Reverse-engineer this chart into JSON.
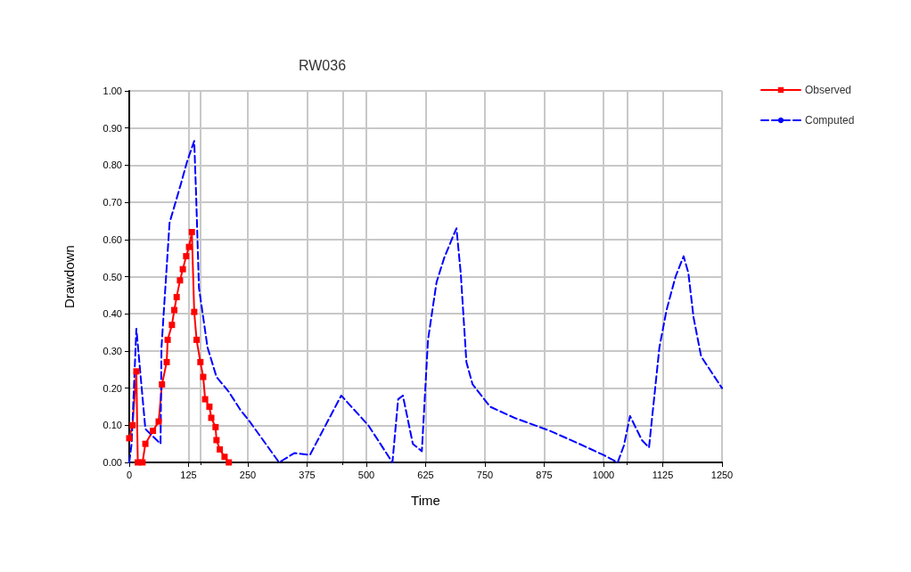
{
  "chart_data": {
    "type": "line",
    "title": "RW036",
    "xlabel": "Time",
    "ylabel": "Drawdown",
    "xlim": [
      0,
      1250
    ],
    "xticks": [
      0,
      125,
      250,
      375,
      500,
      625,
      750,
      875,
      1000,
      1125,
      1250
    ],
    "ylim": [
      0,
      1
    ],
    "yticks": [
      {
        "value": 0,
        "label": "0.00"
      },
      {
        "value": 0.1,
        "label": "0.10"
      },
      {
        "value": 0.2,
        "label": "0.20"
      },
      {
        "value": 0.3,
        "label": "0.30"
      },
      {
        "value": 0.4,
        "label": "0.40"
      },
      {
        "value": 0.5,
        "label": "0.50"
      },
      {
        "value": 0.6,
        "label": "0.60"
      },
      {
        "value": 0.7,
        "label": "0.70"
      },
      {
        "value": 0.8,
        "label": "0.80"
      },
      {
        "value": 0.9,
        "label": "0.90"
      },
      {
        "value": 1,
        "label": "1.00"
      }
    ],
    "grid": true,
    "legend": "top right",
    "series": [
      {
        "name": "Observed",
        "color": "#ff0000",
        "marker": "square",
        "line_style": "solid",
        "x": [
          0,
          7,
          15,
          18,
          28,
          34,
          50,
          62,
          69,
          79,
          81,
          90,
          95,
          100,
          107,
          113,
          120,
          126,
          132,
          137,
          142,
          150,
          156,
          160,
          169,
          173,
          182,
          184,
          191,
          201,
          210
        ],
        "values": [
          0.065,
          0.1,
          0.245,
          0,
          0,
          0.05,
          0.085,
          0.11,
          0.21,
          0.27,
          0.33,
          0.37,
          0.41,
          0.445,
          0.49,
          0.52,
          0.555,
          0.58,
          0.62,
          0.405,
          0.33,
          0.27,
          0.23,
          0.17,
          0.15,
          0.12,
          0.095,
          0.06,
          0.035,
          0.015,
          0
        ]
      },
      {
        "name": "Computed",
        "color": "#0000ff",
        "marker": "none",
        "line_style": "dashed",
        "x": [
          0,
          5,
          15,
          34,
          66,
          68,
          85,
          109,
          122,
          137,
          141,
          147,
          165,
          184,
          210,
          235,
          254,
          316,
          348,
          381,
          447,
          504,
          555,
          567,
          577,
          598,
          617,
          630,
          648,
          664,
          680,
          690,
          699,
          711,
          724,
          761,
          812,
          887,
          949,
          1000,
          1030,
          1043,
          1056,
          1081,
          1096,
          1118,
          1133,
          1152,
          1169,
          1179,
          1190,
          1206,
          1250
        ],
        "values": [
          0,
          0.05,
          0.36,
          0.09,
          0.05,
          0.31,
          0.645,
          0.75,
          0.81,
          0.865,
          0.72,
          0.47,
          0.31,
          0.23,
          0.19,
          0.14,
          0.11,
          0,
          0.025,
          0.02,
          0.18,
          0.1,
          0,
          0.17,
          0.18,
          0.05,
          0.03,
          0.33,
          0.485,
          0.55,
          0.6,
          0.63,
          0.51,
          0.27,
          0.21,
          0.15,
          0.12,
          0.085,
          0.05,
          0.02,
          0,
          0.045,
          0.125,
          0.06,
          0.04,
          0.31,
          0.41,
          0.5,
          0.555,
          0.51,
          0.39,
          0.285,
          0.2
        ]
      }
    ]
  }
}
